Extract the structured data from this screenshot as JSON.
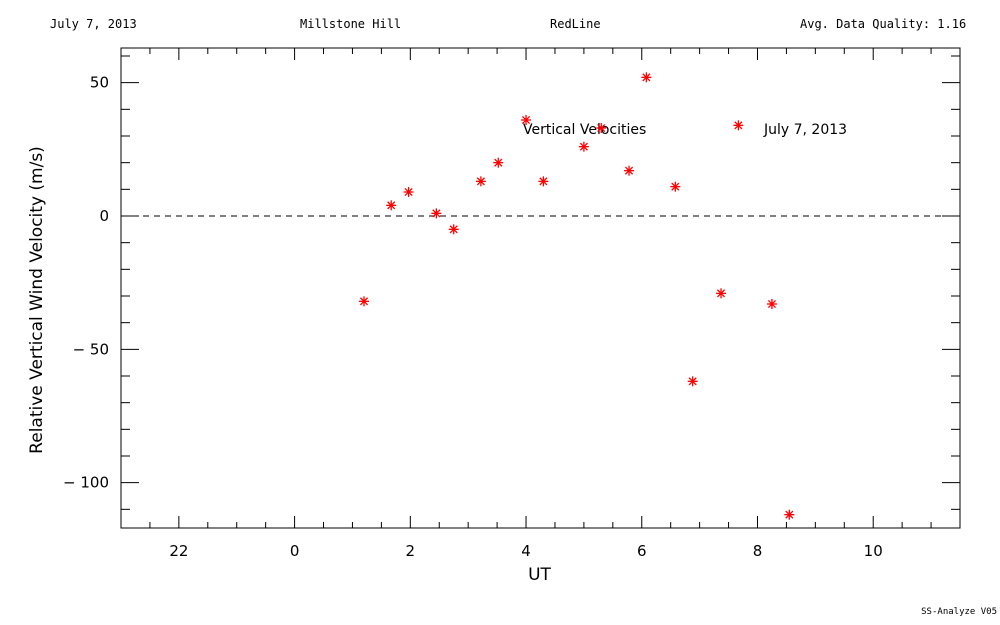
{
  "header": {
    "date": "July 7, 2013",
    "site": "Millstone Hill",
    "line": "RedLine",
    "quality": "Avg. Data Quality: 1.16"
  },
  "footer": {
    "version": "SS-Analyze V05"
  },
  "chart_data": {
    "type": "scatter",
    "title": "",
    "xlabel": "UT",
    "ylabel": "Relative Vertical Wind Velocity (m/s)",
    "xlim": [
      21.0,
      11.5
    ],
    "x_axis_note": "UT hours wrapping past midnight: 21 to 24 then 0 to 11.5",
    "ylim": [
      -117,
      63
    ],
    "x_ticks": [
      "22",
      "0",
      "2",
      "4",
      "6",
      "8",
      "10"
    ],
    "y_ticks": [
      "50",
      "0",
      "− 50",
      "− 100"
    ],
    "zero_line": "dashed",
    "marker": "asterisk",
    "marker_color": "#ff0000",
    "annotations": [
      "Vertical Velocities",
      "July 7, 2013"
    ],
    "series": [
      {
        "x": [
          1.2,
          1.67,
          1.97,
          2.45,
          2.75,
          3.22,
          3.52,
          4.0,
          4.3,
          5.0,
          5.3,
          5.78,
          6.08,
          6.58,
          6.88,
          7.37,
          7.67,
          8.25,
          8.55
        ],
        "y": [
          -32,
          4,
          9,
          1,
          -5,
          13,
          20,
          36,
          13,
          26,
          33,
          17,
          52,
          11,
          -62,
          -29,
          34,
          -33,
          -112
        ]
      }
    ]
  }
}
